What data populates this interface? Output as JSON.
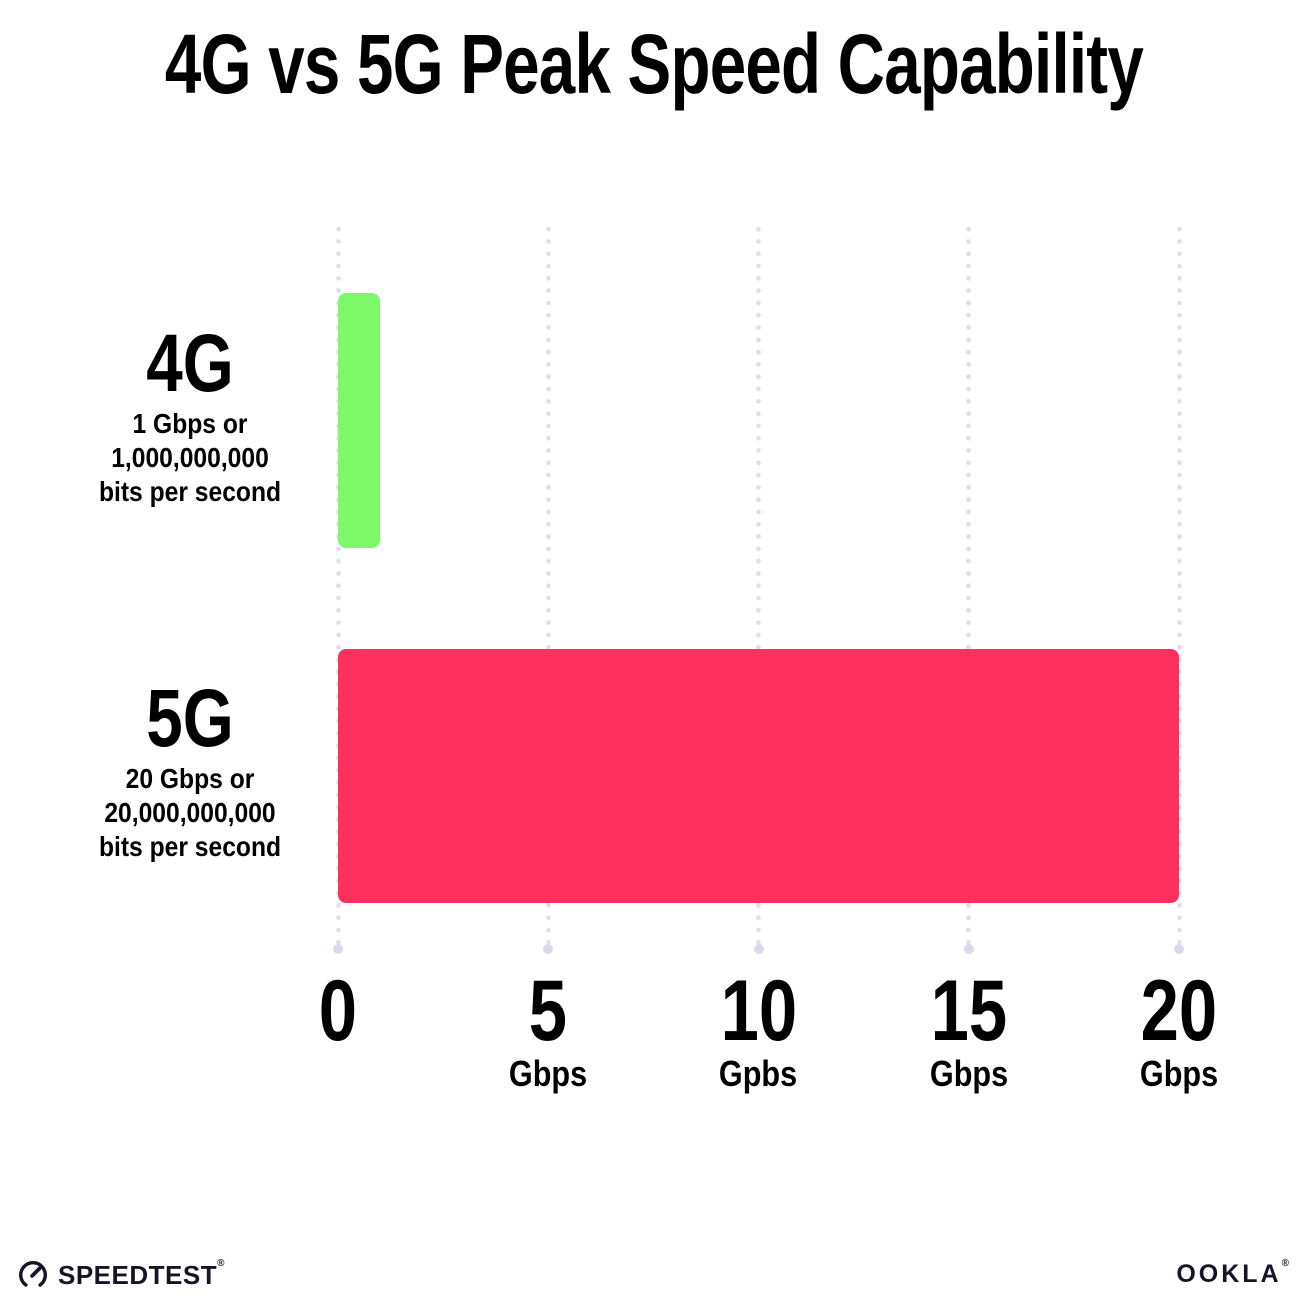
{
  "title": "4G vs 5G Peak Speed Capability",
  "chart_data": {
    "type": "bar",
    "orientation": "horizontal",
    "title": "4G vs 5G Peak Speed Capability",
    "categories": [
      "4G",
      "5G"
    ],
    "values": [
      1,
      20
    ],
    "series_labels": [
      {
        "name": "4G",
        "sub_lines": [
          "1 Gbps or",
          "1,000,000,000",
          "bits per second"
        ]
      },
      {
        "name": "5G",
        "sub_lines": [
          "20 Gbps or",
          "20,000,000,000",
          "bits per second"
        ]
      }
    ],
    "bar_colors": [
      "#7CF869",
      "#FD2F5C"
    ],
    "xlim": [
      0,
      20
    ],
    "x_ticks": [
      {
        "value": 0,
        "label": "0",
        "unit": ""
      },
      {
        "value": 5,
        "label": "5",
        "unit": "Gbps"
      },
      {
        "value": 10,
        "label": "10",
        "unit": "Gpbs"
      },
      {
        "value": 15,
        "label": "15",
        "unit": "Gbps"
      },
      {
        "value": 20,
        "label": "20",
        "unit": "Gbps"
      }
    ],
    "grid": "dotted-vertical",
    "gridline_color": "#dcdeec",
    "legend": "none"
  },
  "footer": {
    "speedtest_label": "SPEEDTEST",
    "speedtest_trademark": "®",
    "ookla_label": "OOKLA",
    "ookla_trademark": "®"
  },
  "colors": {
    "background": "#ffffff",
    "text": "#000000",
    "footer_text": "#141526",
    "bar_4g": "#7CF869",
    "bar_5g": "#FD2F5C"
  }
}
